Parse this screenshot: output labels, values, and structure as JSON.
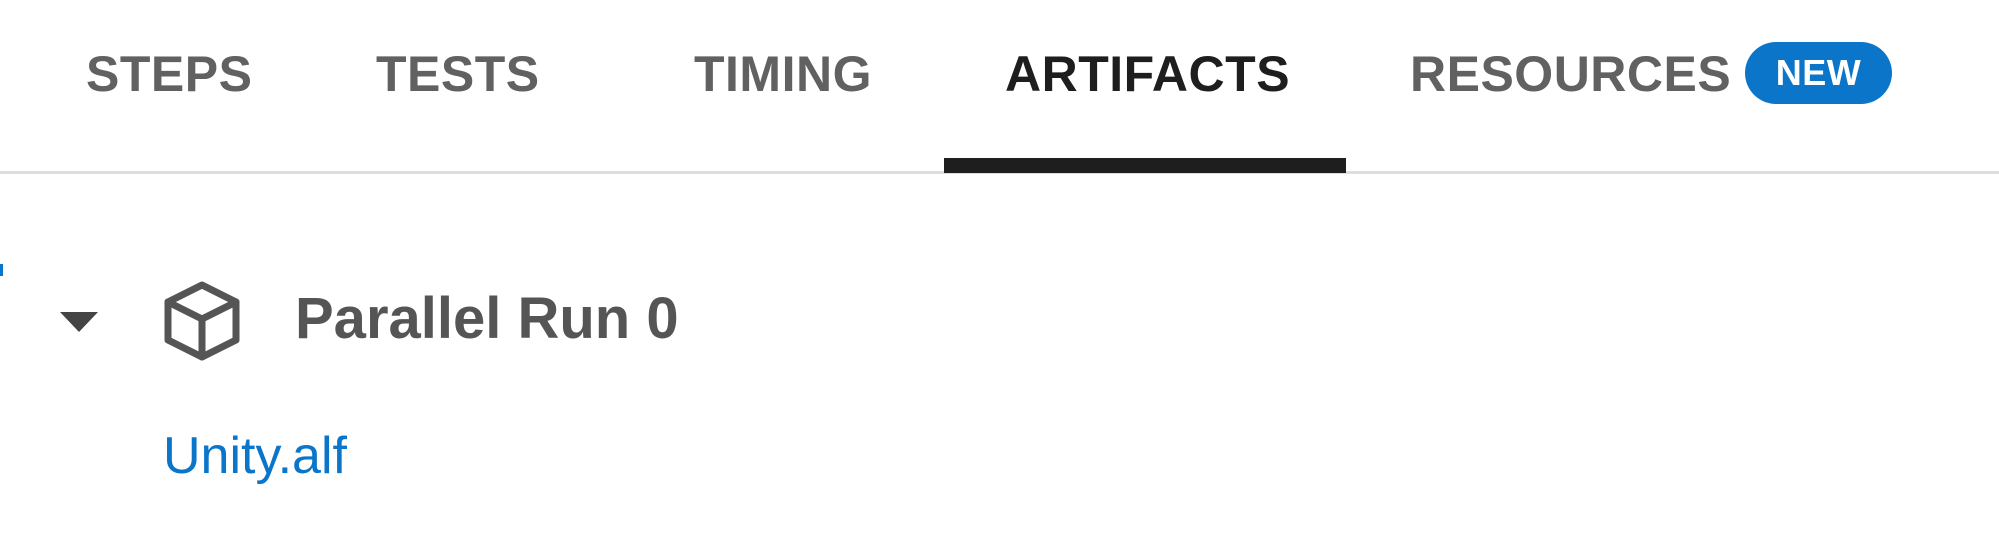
{
  "tabs": {
    "steps": "STEPS",
    "tests": "TESTS",
    "timing": "TIMING",
    "artifacts": "ARTIFACTS",
    "resources": "RESOURCES",
    "active": "ARTIFACTS"
  },
  "badge": {
    "label": "NEW"
  },
  "group": {
    "title": "Parallel Run 0",
    "toggle_icon": "caret-down-icon",
    "icon": "package-cube-icon",
    "expanded": true
  },
  "artifacts": [
    {
      "name": "Unity.alf"
    }
  ],
  "colors": {
    "link": "#0b76c9",
    "badge_bg": "#0b76c9",
    "active_tab": "#1e1e1e",
    "inactive_tab": "#616161",
    "group_title": "#555555",
    "divider": "#dddddd"
  }
}
